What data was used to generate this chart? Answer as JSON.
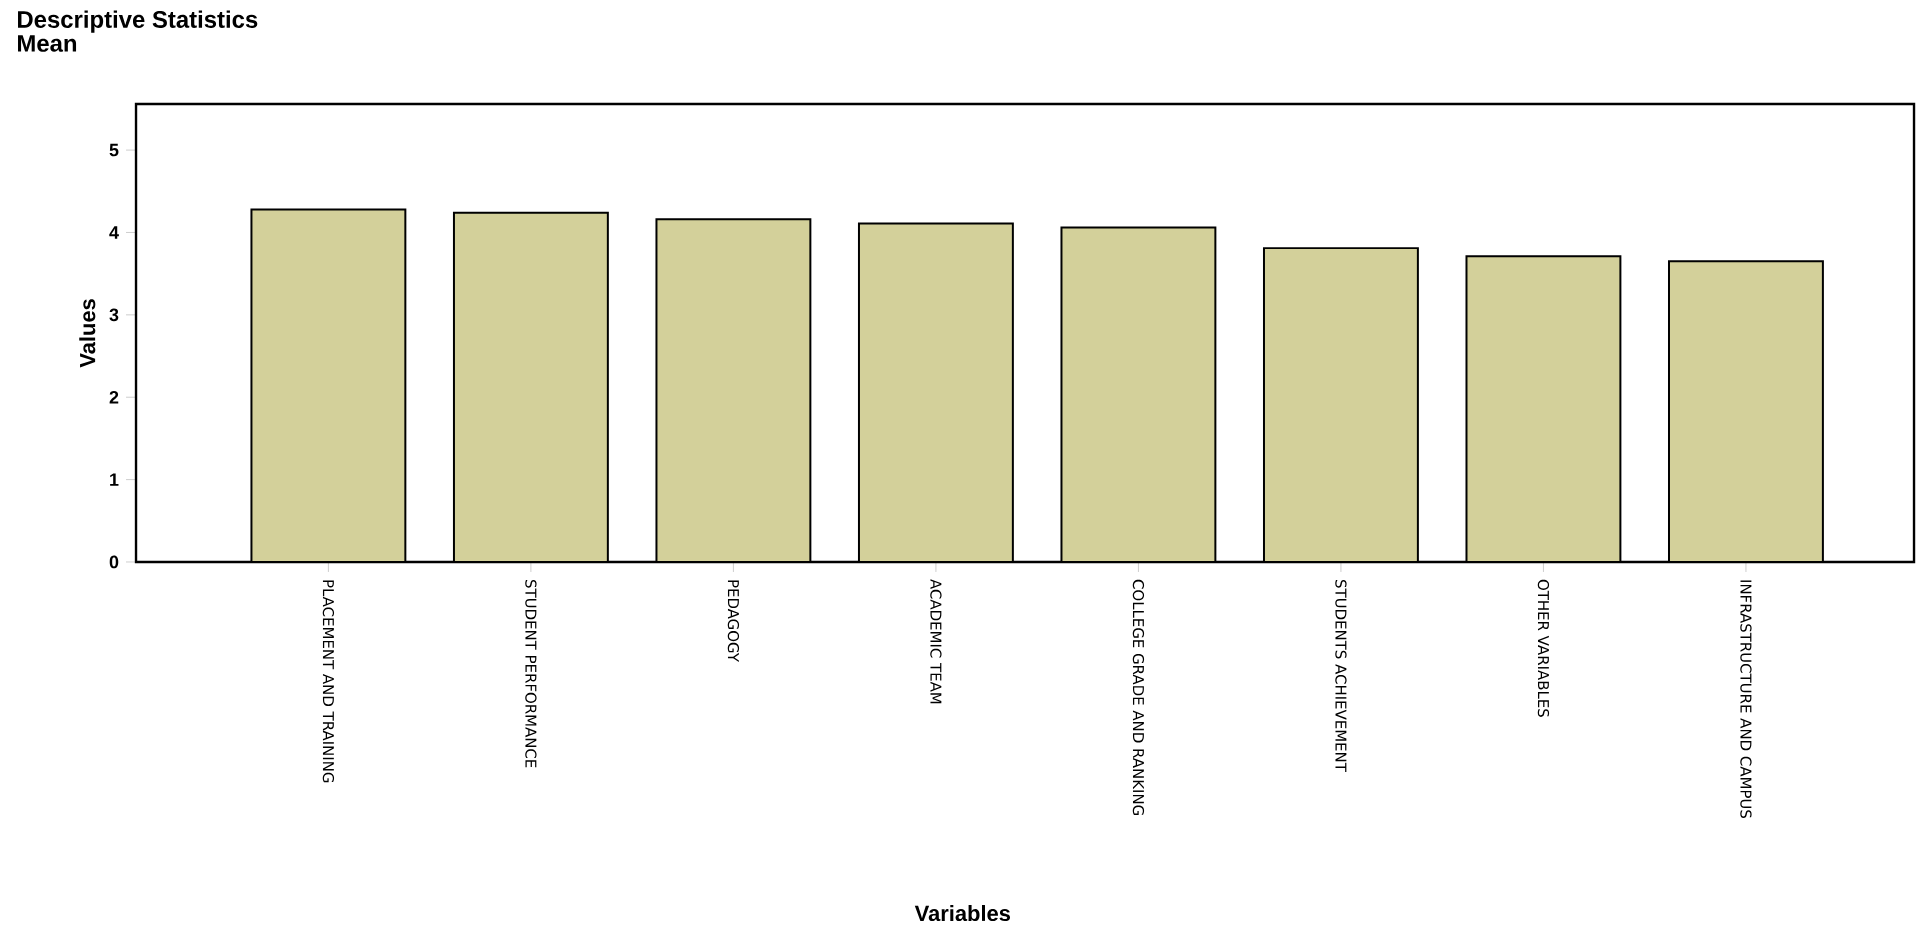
{
  "chart_data": {
    "type": "bar",
    "title": "Descriptive Statistics",
    "subtitle": "Mean",
    "xlabel": "Variables",
    "ylabel": "Values",
    "categories": [
      "PLACEMENT AND TRAINING",
      "STUDENT PERFORMANCE",
      "PEDAGOGY",
      "ACADEMIC TEAM",
      "COLLEGE GRADE AND RANKING",
      "STUDENTS ACHIEVEMENT",
      "OTHER VARIABLES",
      "INFRASTRUCTURE AND CAMPUS"
    ],
    "values": [
      4.28,
      4.24,
      4.16,
      4.11,
      4.06,
      3.81,
      3.71,
      3.65
    ],
    "color": "#d3d09a",
    "ylim": [
      0,
      5.56
    ],
    "yticks": [
      0,
      1,
      2,
      3,
      4,
      5
    ],
    "grid": false
  }
}
